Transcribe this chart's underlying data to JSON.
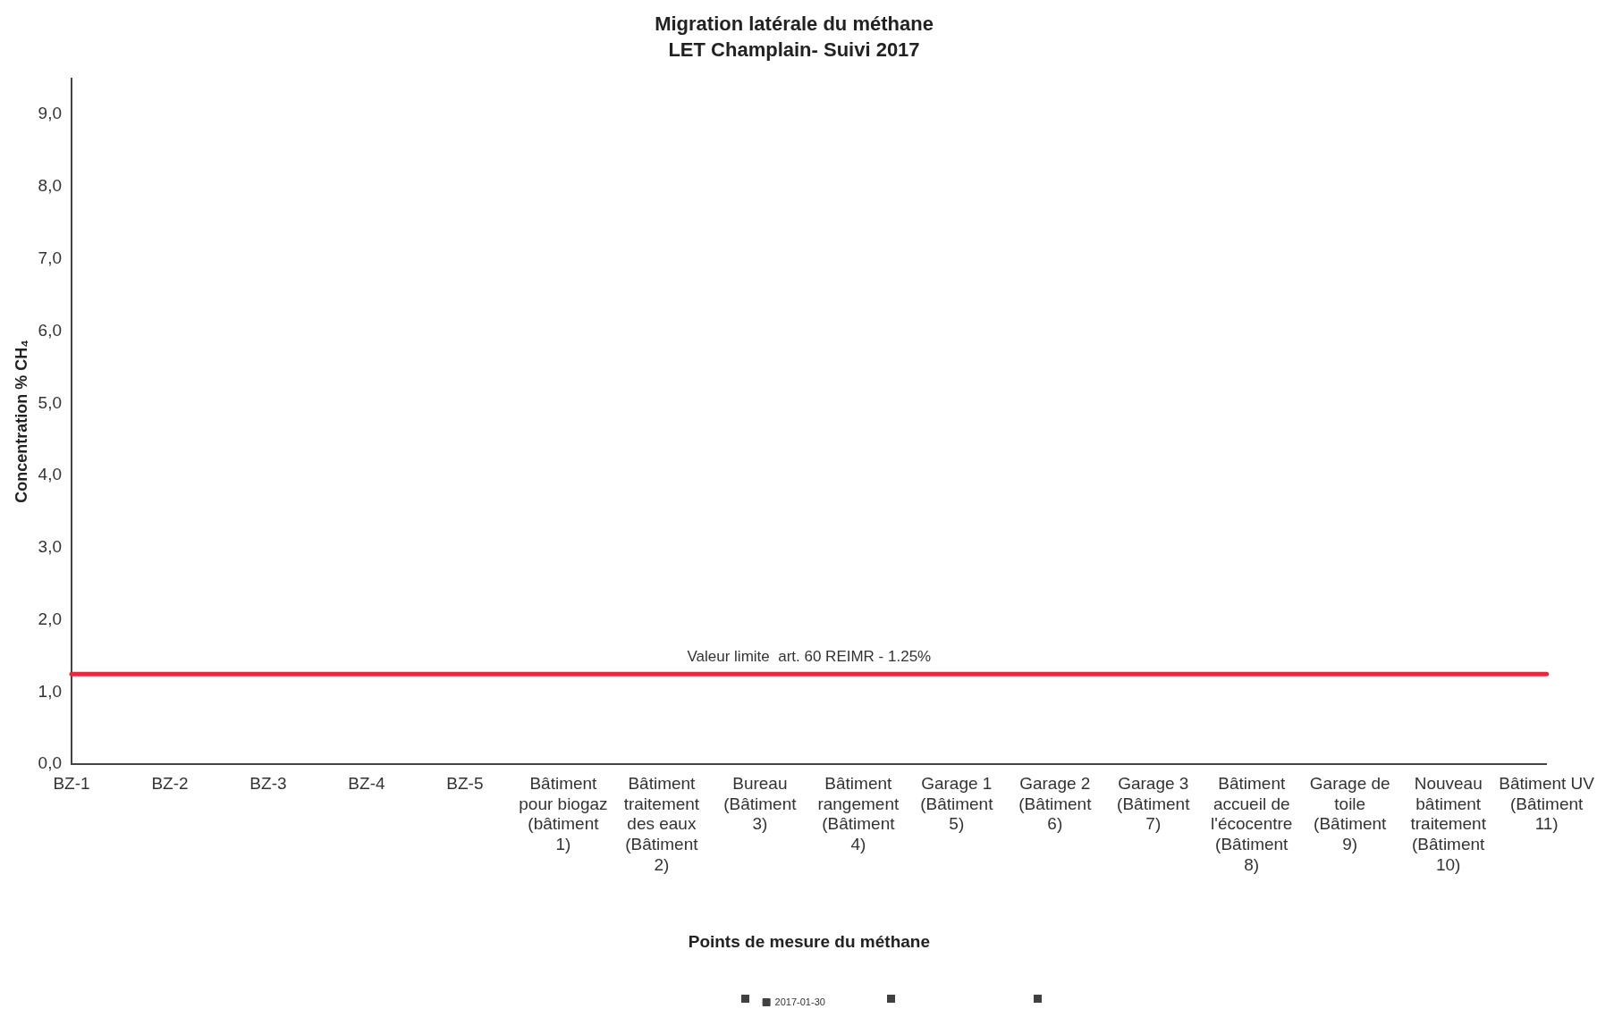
{
  "chart_data": {
    "type": "line",
    "title": "Migration latérale du méthane",
    "subtitle": "LET Champlain- Suivi 2017",
    "xlabel": "Points de mesure du méthane",
    "ylabel": "Concentration % CH₄",
    "categories": [
      "BZ-1",
      "BZ-2",
      "BZ-3",
      "BZ-4",
      "BZ-5",
      "Bâtiment pour biogaz (bâtiment 1)",
      "Bâtiment traitement des eaux (Bâtiment 2)",
      "Bureau (Bâtiment 3)",
      "Bâtiment rangement (Bâtiment 4)",
      "Garage 1 (Bâtiment 5)",
      "Garage 2 (Bâtiment 6)",
      "Garage 3 (Bâtiment 7)",
      "Bâtiment accueil de l'écocentre (Bâtiment 8)",
      "Garage de toile (Bâtiment 9)",
      "Nouveau bâtiment traitement (Bâtiment 10)",
      "Bâtiment UV (Bâtiment 11)"
    ],
    "series": [
      {
        "name": "2017-01-30",
        "color": "#404040",
        "values": [
          null,
          null,
          null,
          null,
          null,
          null,
          null,
          null,
          null,
          null,
          null,
          null,
          null,
          null,
          null,
          null
        ]
      }
    ],
    "ylim": [
      0,
      9.5
    ],
    "yticks": [
      {
        "value": 0,
        "label": "0,0"
      },
      {
        "value": 1,
        "label": "1,0"
      },
      {
        "value": 2,
        "label": "2,0"
      },
      {
        "value": 3,
        "label": "3,0"
      },
      {
        "value": 4,
        "label": "4,0"
      },
      {
        "value": 5,
        "label": "5,0"
      },
      {
        "value": 6,
        "label": "6,0"
      },
      {
        "value": 7,
        "label": "7,0"
      },
      {
        "value": 8,
        "label": "8,0"
      },
      {
        "value": 9,
        "label": "9,0"
      }
    ],
    "ref_lines": [
      {
        "axis": "y",
        "value": 1.25,
        "label": "Valeur limite  art. 60 REIMR - 1.25%",
        "color": "#e8283c"
      }
    ],
    "grid": false,
    "legend": "bottom",
    "marker": "square"
  }
}
